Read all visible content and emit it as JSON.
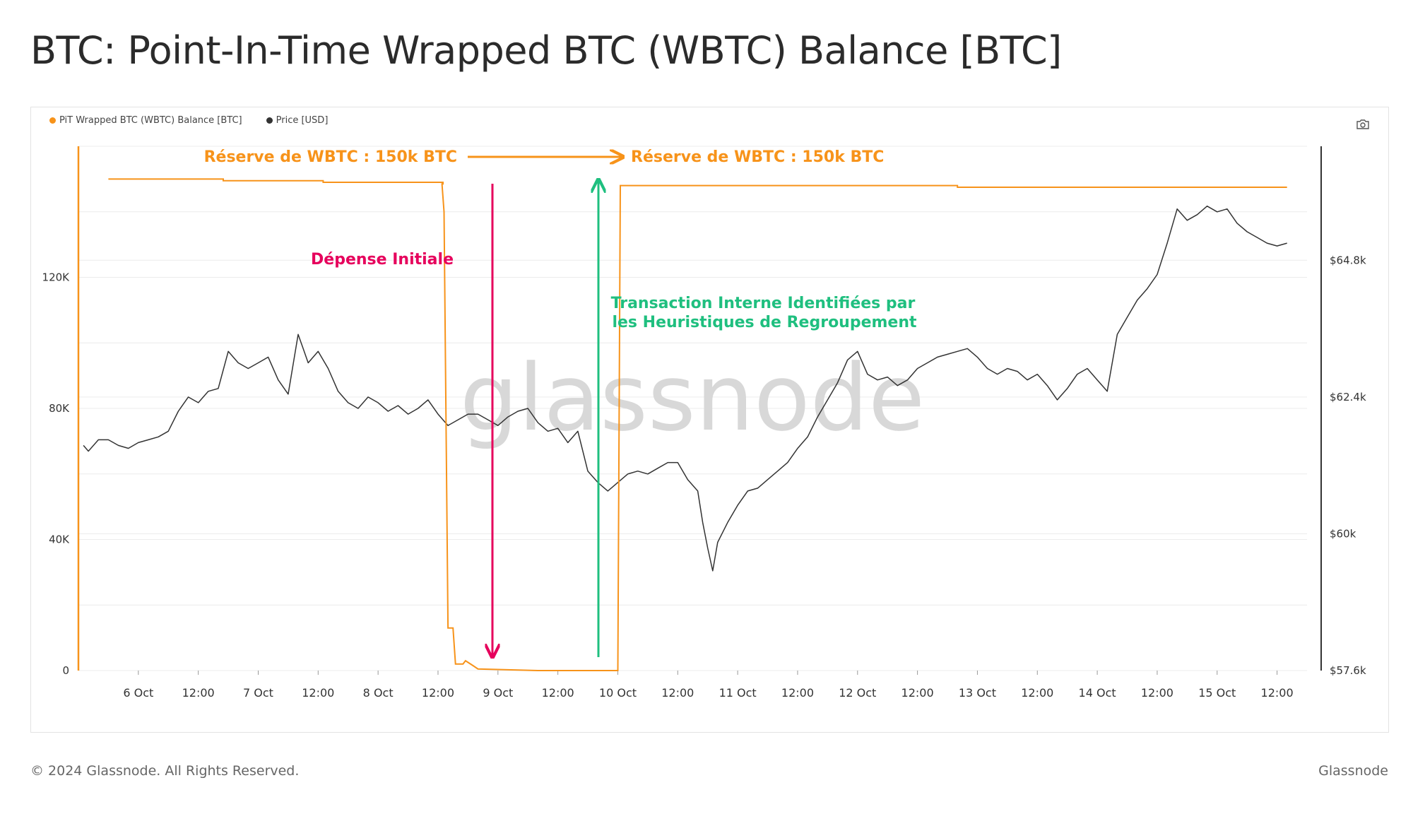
{
  "page_title": "BTC: Point-In-Time Wrapped BTC (WBTC) Balance [BTC]",
  "footer": {
    "copyright": "© 2024 Glassnode. All Rights Reserved.",
    "brand": "Glassnode"
  },
  "watermark": "glassnode",
  "icons": {
    "screenshot": "camera-icon"
  },
  "colors": {
    "balance": "#f7931a",
    "price": "#333333",
    "spend_arrow": "#e6005c",
    "internal_arrow": "#1fbf7f",
    "grid": "#ececec"
  },
  "annotations": {
    "reserve_left": "Réserve de WBTC : 150k BTC",
    "reserve_right": "Réserve de WBTC : 150k BTC",
    "initial_spend": "Dépense Initiale",
    "internal_tx_line1": "Transaction Interne Identifiées par",
    "internal_tx_line2": "les Heuristiques de Regroupement"
  },
  "chart_data": {
    "type": "line",
    "title": "BTC: Point-In-Time Wrapped BTC (WBTC) Balance [BTC]",
    "legend": {
      "placement": "top-left"
    },
    "grid": true,
    "x_range_hours": [
      -12,
      234
    ],
    "x_ticks": [
      {
        "h": 0,
        "label": "6 Oct"
      },
      {
        "h": 12,
        "label": "12:00"
      },
      {
        "h": 24,
        "label": "7 Oct"
      },
      {
        "h": 36,
        "label": "12:00"
      },
      {
        "h": 48,
        "label": "8 Oct"
      },
      {
        "h": 60,
        "label": "12:00"
      },
      {
        "h": 72,
        "label": "9 Oct"
      },
      {
        "h": 84,
        "label": "12:00"
      },
      {
        "h": 96,
        "label": "10 Oct"
      },
      {
        "h": 108,
        "label": "12:00"
      },
      {
        "h": 120,
        "label": "11 Oct"
      },
      {
        "h": 132,
        "label": "12:00"
      },
      {
        "h": 144,
        "label": "12 Oct"
      },
      {
        "h": 156,
        "label": "12:00"
      },
      {
        "h": 168,
        "label": "13 Oct"
      },
      {
        "h": 180,
        "label": "12:00"
      },
      {
        "h": 192,
        "label": "14 Oct"
      },
      {
        "h": 204,
        "label": "12:00"
      },
      {
        "h": 216,
        "label": "15 Oct"
      },
      {
        "h": 228,
        "label": "12:00"
      }
    ],
    "y_left": {
      "range": [
        0,
        160000
      ],
      "ticks": [
        0,
        40000,
        80000,
        120000
      ],
      "tick_labels": [
        "0",
        "40K",
        "80K",
        "120K"
      ]
    },
    "y_right": {
      "range": [
        57600,
        66800
      ],
      "ticks": [
        57600,
        60000,
        62400,
        64800
      ],
      "tick_labels": [
        "$57.6k",
        "$60k",
        "$62.4k",
        "$64.8k"
      ]
    },
    "series": [
      {
        "name": "PiT Wrapped BTC (WBTC) Balance [BTC]",
        "axis": "left",
        "color": "#f7931a",
        "points": [
          [
            -6,
            150000
          ],
          [
            17,
            150000
          ],
          [
            17,
            149500
          ],
          [
            37,
            149500
          ],
          [
            37,
            149000
          ],
          [
            61,
            149000
          ],
          [
            61,
            148500
          ],
          [
            60.8,
            148500
          ],
          [
            61.2,
            140000
          ],
          [
            62,
            13000
          ],
          [
            63,
            13000
          ],
          [
            63.5,
            2000
          ],
          [
            65,
            2000
          ],
          [
            65.5,
            3000
          ],
          [
            67,
            1500
          ],
          [
            68,
            500
          ],
          [
            80,
            0
          ],
          [
            96,
            0
          ],
          [
            96.5,
            148000
          ],
          [
            128,
            148000
          ],
          [
            128,
            148000
          ],
          [
            164,
            148000
          ],
          [
            164,
            147500
          ],
          [
            230,
            147500
          ]
        ]
      },
      {
        "name": "Price [USD]",
        "axis": "right",
        "color": "#333333",
        "points": [
          [
            -11,
            61550
          ],
          [
            -10,
            61450
          ],
          [
            -8,
            61650
          ],
          [
            -6,
            61650
          ],
          [
            -4,
            61550
          ],
          [
            -2,
            61500
          ],
          [
            0,
            61600
          ],
          [
            2,
            61650
          ],
          [
            4,
            61700
          ],
          [
            6,
            61800
          ],
          [
            8,
            62150
          ],
          [
            10,
            62400
          ],
          [
            12,
            62300
          ],
          [
            14,
            62500
          ],
          [
            16,
            62550
          ],
          [
            18,
            63200
          ],
          [
            20,
            63000
          ],
          [
            22,
            62900
          ],
          [
            24,
            63000
          ],
          [
            26,
            63100
          ],
          [
            28,
            62700
          ],
          [
            30,
            62450
          ],
          [
            32,
            63500
          ],
          [
            33,
            63250
          ],
          [
            34,
            63000
          ],
          [
            36,
            63200
          ],
          [
            38,
            62900
          ],
          [
            40,
            62500
          ],
          [
            42,
            62300
          ],
          [
            44,
            62200
          ],
          [
            46,
            62400
          ],
          [
            48,
            62300
          ],
          [
            50,
            62150
          ],
          [
            52,
            62250
          ],
          [
            54,
            62100
          ],
          [
            56,
            62200
          ],
          [
            58,
            62350
          ],
          [
            60,
            62100
          ],
          [
            62,
            61900
          ],
          [
            64,
            62000
          ],
          [
            66,
            62100
          ],
          [
            68,
            62100
          ],
          [
            70,
            62000
          ],
          [
            72,
            61900
          ],
          [
            74,
            62050
          ],
          [
            76,
            62150
          ],
          [
            78,
            62200
          ],
          [
            80,
            61950
          ],
          [
            82,
            61800
          ],
          [
            84,
            61850
          ],
          [
            86,
            61600
          ],
          [
            88,
            61800
          ],
          [
            90,
            61100
          ],
          [
            92,
            60900
          ],
          [
            94,
            60750
          ],
          [
            96,
            60900
          ],
          [
            98,
            61050
          ],
          [
            100,
            61100
          ],
          [
            102,
            61050
          ],
          [
            104,
            61150
          ],
          [
            106,
            61250
          ],
          [
            108,
            61250
          ],
          [
            110,
            60950
          ],
          [
            112,
            60750
          ],
          [
            113,
            60200
          ],
          [
            114,
            59750
          ],
          [
            115,
            59350
          ],
          [
            116,
            59850
          ],
          [
            118,
            60200
          ],
          [
            120,
            60500
          ],
          [
            122,
            60750
          ],
          [
            124,
            60800
          ],
          [
            126,
            60950
          ],
          [
            128,
            61100
          ],
          [
            130,
            61250
          ],
          [
            132,
            61500
          ],
          [
            134,
            61700
          ],
          [
            136,
            62050
          ],
          [
            138,
            62350
          ],
          [
            140,
            62650
          ],
          [
            142,
            63050
          ],
          [
            144,
            63200
          ],
          [
            146,
            62800
          ],
          [
            148,
            62700
          ],
          [
            150,
            62750
          ],
          [
            152,
            62600
          ],
          [
            154,
            62700
          ],
          [
            156,
            62900
          ],
          [
            158,
            63000
          ],
          [
            160,
            63100
          ],
          [
            162,
            63150
          ],
          [
            164,
            63200
          ],
          [
            166,
            63250
          ],
          [
            168,
            63100
          ],
          [
            170,
            62900
          ],
          [
            172,
            62800
          ],
          [
            174,
            62900
          ],
          [
            176,
            62850
          ],
          [
            178,
            62700
          ],
          [
            180,
            62800
          ],
          [
            182,
            62600
          ],
          [
            184,
            62350
          ],
          [
            186,
            62550
          ],
          [
            188,
            62800
          ],
          [
            190,
            62900
          ],
          [
            192,
            62700
          ],
          [
            194,
            62500
          ],
          [
            196,
            63500
          ],
          [
            198,
            63800
          ],
          [
            200,
            64100
          ],
          [
            202,
            64300
          ],
          [
            204,
            64550
          ],
          [
            206,
            65100
          ],
          [
            208,
            65700
          ],
          [
            210,
            65500
          ],
          [
            212,
            65600
          ],
          [
            214,
            65750
          ],
          [
            216,
            65650
          ],
          [
            218,
            65700
          ],
          [
            220,
            65450
          ],
          [
            222,
            65300
          ],
          [
            224,
            65200
          ],
          [
            226,
            65100
          ],
          [
            228,
            65050
          ],
          [
            230,
            65100
          ]
        ]
      }
    ]
  }
}
